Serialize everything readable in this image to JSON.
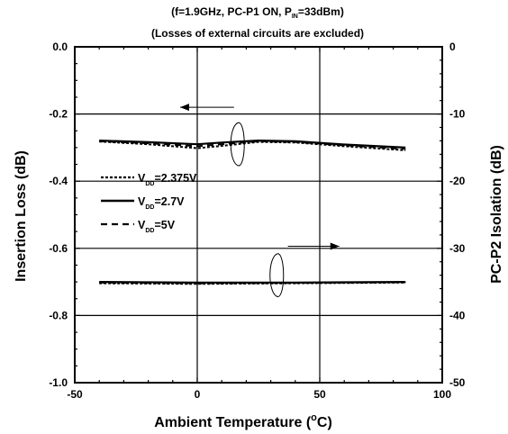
{
  "chart_data": {
    "type": "line",
    "subtitle_lines": [
      [
        "(f=1.9GHz, PC-P1 ON, P",
        "IN",
        "=33dBm)"
      ],
      [
        "(Losses of external circuits are excluded)"
      ]
    ],
    "xlabel_main": "Ambient Temperature  (",
    "xlabel_sup": "o",
    "xlabel_end": "C)",
    "ylabel_left": "Insertion Loss  (dB)",
    "ylabel_right": "PC-P2 Isolation  (dB)",
    "xlim": [
      -50,
      100
    ],
    "ylim_left": [
      -1.0,
      0.0
    ],
    "ylim_right": [
      -50,
      0
    ],
    "x_ticks": [
      {
        "v": -50,
        "label": "-50"
      },
      {
        "v": 0,
        "label": "0"
      },
      {
        "v": 50,
        "label": "50"
      },
      {
        "v": 100,
        "label": "100"
      }
    ],
    "y_ticks_left": [
      {
        "v": 0.0,
        "label": "0.0"
      },
      {
        "v": -0.2,
        "label": "-0.2"
      },
      {
        "v": -0.4,
        "label": "-0.4"
      },
      {
        "v": -0.6,
        "label": "-0.6"
      },
      {
        "v": -0.8,
        "label": "-0.8"
      },
      {
        "v": -1.0,
        "label": "-1.0"
      }
    ],
    "y_ticks_right": [
      {
        "v": 0,
        "label": "0"
      },
      {
        "v": -10,
        "label": "-10"
      },
      {
        "v": -20,
        "label": "-20"
      },
      {
        "v": -30,
        "label": "-30"
      },
      {
        "v": -40,
        "label": "-40"
      },
      {
        "v": -50,
        "label": "-50"
      }
    ],
    "grid_x": [
      0,
      50
    ],
    "grid_y_left": [
      -0.2,
      -0.4,
      -0.6,
      -0.8
    ],
    "legend": [
      {
        "prefix": "V",
        "sub": "DD",
        "suffix": "=2.375V",
        "dash": "dotted"
      },
      {
        "prefix": "V",
        "sub": "DD",
        "suffix": "=2.7V",
        "dash": "solid"
      },
      {
        "prefix": "V",
        "sub": "DD",
        "suffix": "=5V",
        "dash": "dashed"
      }
    ],
    "series": [
      {
        "group": "insertion_loss",
        "axis": "left",
        "dash": "dotted",
        "x": [
          -40,
          -20,
          0,
          10,
          25,
          40,
          60,
          85
        ],
        "y": [
          -0.282,
          -0.29,
          -0.302,
          -0.295,
          -0.283,
          -0.285,
          -0.296,
          -0.308
        ]
      },
      {
        "group": "insertion_loss",
        "axis": "left",
        "dash": "solid",
        "x": [
          -40,
          -20,
          0,
          10,
          25,
          40,
          60,
          85
        ],
        "y": [
          -0.279,
          -0.284,
          -0.29,
          -0.285,
          -0.279,
          -0.281,
          -0.291,
          -0.3
        ]
      },
      {
        "group": "insertion_loss",
        "axis": "left",
        "dash": "dashed",
        "x": [
          -40,
          -20,
          0,
          10,
          25,
          40,
          60,
          85
        ],
        "y": [
          -0.281,
          -0.287,
          -0.296,
          -0.29,
          -0.281,
          -0.283,
          -0.293,
          -0.304
        ]
      },
      {
        "group": "isolation",
        "axis": "right",
        "dash": "dotted",
        "x": [
          -40,
          0,
          40,
          85
        ],
        "y": [
          -35.2,
          -35.3,
          -35.2,
          -35.1
        ]
      },
      {
        "group": "isolation",
        "axis": "right",
        "dash": "solid",
        "x": [
          -40,
          0,
          40,
          85
        ],
        "y": [
          -35.0,
          -35.1,
          -35.1,
          -35.0
        ]
      },
      {
        "group": "isolation",
        "axis": "right",
        "dash": "dashed",
        "x": [
          -40,
          0,
          40,
          85
        ],
        "y": [
          -35.1,
          -35.2,
          -35.15,
          -35.05
        ]
      }
    ],
    "annotations": [
      {
        "type": "arrow",
        "points_to": "left",
        "x_from": 15,
        "x_to": -7,
        "y": -0.18,
        "axis": "left"
      },
      {
        "type": "ellipse",
        "x": 17,
        "y": -0.29,
        "axis": "left"
      },
      {
        "type": "arrow",
        "points_to": "right",
        "x_from": 37,
        "x_to": 58,
        "y": -0.594,
        "axis": "left"
      },
      {
        "type": "ellipse",
        "x": 33,
        "y": -0.68,
        "axis": "left"
      }
    ]
  }
}
